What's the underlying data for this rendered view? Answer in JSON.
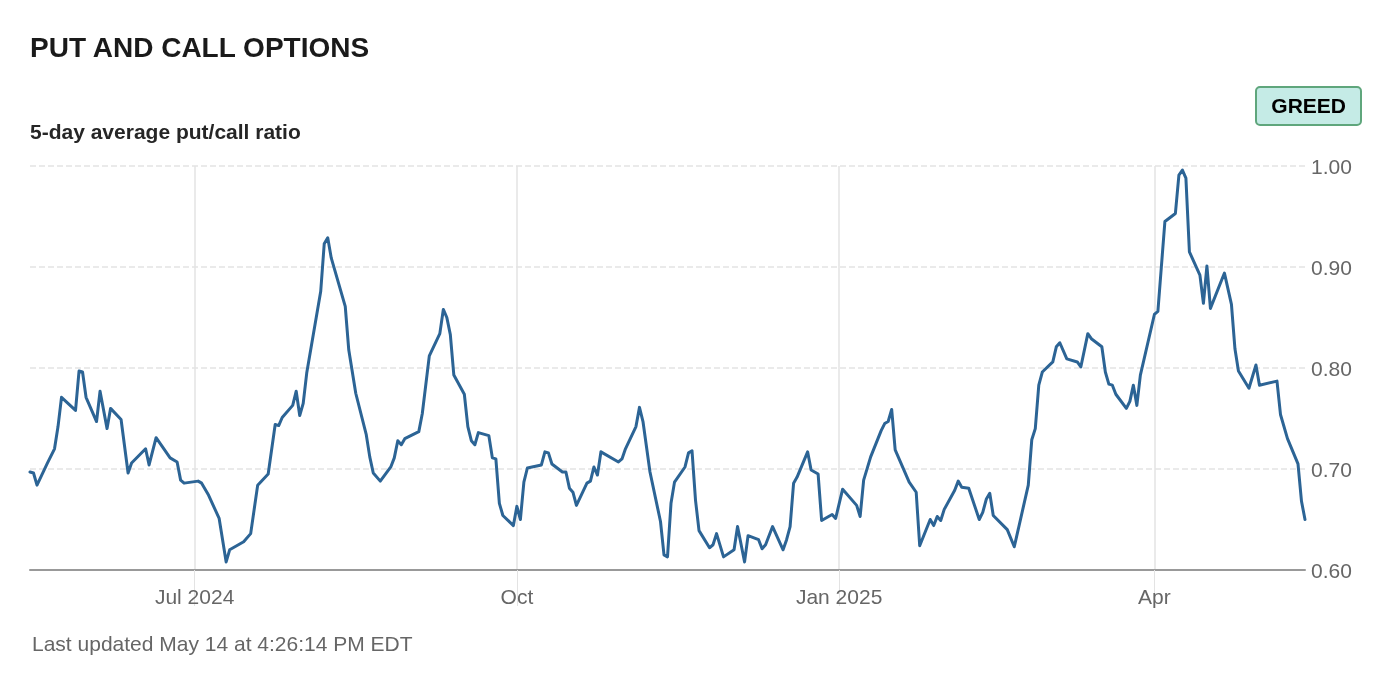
{
  "chart_data": {
    "type": "line",
    "title": "PUT AND CALL OPTIONS",
    "subtitle": "5-day average put/call ratio",
    "annotations": [
      "GREED",
      "Last updated May 14 at 4:26:14 PM EDT"
    ],
    "x": [
      "2024-05-15",
      "2024-05-16",
      "2024-05-17",
      "2024-05-20",
      "2024-05-22",
      "2024-05-23",
      "2024-05-24",
      "2024-05-28",
      "2024-05-29",
      "2024-05-30",
      "2024-05-31",
      "2024-06-03",
      "2024-06-04",
      "2024-06-06",
      "2024-06-07",
      "2024-06-10",
      "2024-06-12",
      "2024-06-13",
      "2024-06-17",
      "2024-06-18",
      "2024-06-20",
      "2024-06-24",
      "2024-06-26",
      "2024-06-27",
      "2024-06-28",
      "2024-07-02",
      "2024-07-03",
      "2024-07-05",
      "2024-07-08",
      "2024-07-10",
      "2024-07-11",
      "2024-07-15",
      "2024-07-17",
      "2024-07-19",
      "2024-07-22",
      "2024-07-24",
      "2024-07-25",
      "2024-07-26",
      "2024-07-29",
      "2024-07-30",
      "2024-07-31",
      "2024-08-01",
      "2024-08-02",
      "2024-08-06",
      "2024-08-07",
      "2024-08-08",
      "2024-08-09",
      "2024-08-13",
      "2024-08-14",
      "2024-08-16",
      "2024-08-19",
      "2024-08-20",
      "2024-08-21",
      "2024-08-23",
      "2024-08-26",
      "2024-08-27",
      "2024-08-28",
      "2024-08-29",
      "2024-08-30",
      "2024-09-03",
      "2024-09-04",
      "2024-09-06",
      "2024-09-09",
      "2024-09-10",
      "2024-09-11",
      "2024-09-12",
      "2024-09-13",
      "2024-09-16",
      "2024-09-17",
      "2024-09-18",
      "2024-09-19",
      "2024-09-20",
      "2024-09-23",
      "2024-09-24",
      "2024-09-25",
      "2024-09-26",
      "2024-09-27",
      "2024-09-30",
      "2024-10-01",
      "2024-10-02",
      "2024-10-03",
      "2024-10-04",
      "2024-10-08",
      "2024-10-09",
      "2024-10-10",
      "2024-10-11",
      "2024-10-14",
      "2024-10-15",
      "2024-10-16",
      "2024-10-17",
      "2024-10-18",
      "2024-10-21",
      "2024-10-22",
      "2024-10-23",
      "2024-10-24",
      "2024-10-25",
      "2024-10-30",
      "2024-10-31",
      "2024-11-01",
      "2024-11-04",
      "2024-11-05",
      "2024-11-06",
      "2024-11-08",
      "2024-11-11",
      "2024-11-12",
      "2024-11-13",
      "2024-11-14",
      "2024-11-15",
      "2024-11-18",
      "2024-11-19",
      "2024-11-20",
      "2024-11-21",
      "2024-11-22",
      "2024-11-25",
      "2024-11-26",
      "2024-11-27",
      "2024-11-29",
      "2024-12-02",
      "2024-12-03",
      "2024-12-05",
      "2024-12-06",
      "2024-12-09",
      "2024-12-10",
      "2024-12-11",
      "2024-12-13",
      "2024-12-16",
      "2024-12-17",
      "2024-12-18",
      "2024-12-19",
      "2024-12-20",
      "2024-12-23",
      "2024-12-24",
      "2024-12-26",
      "2024-12-27",
      "2024-12-30",
      "2024-12-31",
      "2025-01-02",
      "2025-01-06",
      "2025-01-07",
      "2025-01-08",
      "2025-01-10",
      "2025-01-13",
      "2025-01-14",
      "2025-01-15",
      "2025-01-16",
      "2025-01-17",
      "2025-01-21",
      "2025-01-23",
      "2025-01-24",
      "2025-01-27",
      "2025-01-28",
      "2025-01-29",
      "2025-01-30",
      "2025-01-31",
      "2025-02-03",
      "2025-02-04",
      "2025-02-05",
      "2025-02-07",
      "2025-02-10",
      "2025-02-11",
      "2025-02-12",
      "2025-02-13",
      "2025-02-14",
      "2025-02-18",
      "2025-02-20",
      "2025-02-24",
      "2025-02-25",
      "2025-02-26",
      "2025-02-27",
      "2025-02-28",
      "2025-03-03",
      "2025-03-04",
      "2025-03-05",
      "2025-03-07",
      "2025-03-10",
      "2025-03-11",
      "2025-03-13",
      "2025-03-14",
      "2025-03-17",
      "2025-03-18",
      "2025-03-19",
      "2025-03-20",
      "2025-03-21",
      "2025-03-24",
      "2025-03-25",
      "2025-03-26",
      "2025-03-27",
      "2025-03-28",
      "2025-04-01",
      "2025-04-02",
      "2025-04-04",
      "2025-04-07",
      "2025-04-08",
      "2025-04-09",
      "2025-04-10",
      "2025-04-11",
      "2025-04-14",
      "2025-04-15",
      "2025-04-16",
      "2025-04-17",
      "2025-04-21",
      "2025-04-23",
      "2025-04-24",
      "2025-04-25",
      "2025-04-28",
      "2025-04-30",
      "2025-05-01",
      "2025-05-06",
      "2025-05-07",
      "2025-05-09",
      "2025-05-12",
      "2025-05-13",
      "2025-05-14"
    ],
    "series": [
      {
        "color": "#2c6495",
        "values": [
          0.697,
          0.696,
          0.684,
          0.706,
          0.72,
          0.742,
          0.771,
          0.758,
          0.797,
          0.796,
          0.771,
          0.747,
          0.777,
          0.74,
          0.76,
          0.749,
          0.696,
          0.706,
          0.72,
          0.704,
          0.731,
          0.711,
          0.707,
          0.689,
          0.686,
          0.688,
          0.686,
          0.674,
          0.651,
          0.608,
          0.62,
          0.628,
          0.636,
          0.684,
          0.695,
          0.744,
          0.743,
          0.751,
          0.763,
          0.777,
          0.753,
          0.765,
          0.795,
          0.876,
          0.923,
          0.929,
          0.909,
          0.861,
          0.818,
          0.775,
          0.734,
          0.712,
          0.696,
          0.688,
          0.702,
          0.711,
          0.728,
          0.724,
          0.73,
          0.737,
          0.755,
          0.812,
          0.834,
          0.858,
          0.85,
          0.833,
          0.793,
          0.774,
          0.742,
          0.728,
          0.724,
          0.736,
          0.733,
          0.711,
          0.71,
          0.666,
          0.654,
          0.644,
          0.663,
          0.65,
          0.687,
          0.701,
          0.704,
          0.717,
          0.716,
          0.705,
          0.697,
          0.697,
          0.681,
          0.677,
          0.664,
          0.686,
          0.688,
          0.702,
          0.694,
          0.717,
          0.707,
          0.71,
          0.72,
          0.742,
          0.761,
          0.747,
          0.697,
          0.648,
          0.615,
          0.613,
          0.666,
          0.687,
          0.702,
          0.716,
          0.718,
          0.669,
          0.639,
          0.622,
          0.625,
          0.636,
          0.613,
          0.62,
          0.643,
          0.608,
          0.634,
          0.63,
          0.621,
          0.625,
          0.643,
          0.62,
          0.63,
          0.643,
          0.686,
          0.692,
          0.717,
          0.699,
          0.695,
          0.649,
          0.655,
          0.651,
          0.68,
          0.664,
          0.653,
          0.689,
          0.712,
          0.738,
          0.745,
          0.747,
          0.759,
          0.719,
          0.687,
          0.677,
          0.624,
          0.65,
          0.644,
          0.653,
          0.649,
          0.66,
          0.679,
          0.688,
          0.682,
          0.681,
          0.65,
          0.657,
          0.67,
          0.676,
          0.654,
          0.64,
          0.623,
          0.684,
          0.729,
          0.74,
          0.783,
          0.796,
          0.806,
          0.821,
          0.825,
          0.809,
          0.806,
          0.801,
          0.834,
          0.829,
          0.821,
          0.796,
          0.784,
          0.783,
          0.774,
          0.76,
          0.767,
          0.783,
          0.763,
          0.793,
          0.853,
          0.856,
          0.945,
          0.953,
          0.991,
          0.996,
          0.988,
          0.915,
          0.892,
          0.864,
          0.901,
          0.859,
          0.894,
          0.863,
          0.819,
          0.797,
          0.78,
          0.803,
          0.783,
          0.787,
          0.754,
          0.73,
          0.705,
          0.668,
          0.65
        ]
      }
    ],
    "xlim": [
      "2024-05-15",
      "2025-05-14"
    ],
    "xticks": [
      {
        "value": "2024-07-01",
        "label": "Jul 2024"
      },
      {
        "value": "2024-10-01",
        "label": "Oct"
      },
      {
        "value": "2025-01-01",
        "label": "Jan 2025"
      },
      {
        "value": "2025-04-01",
        "label": "Apr"
      }
    ],
    "ylim": [
      0.6,
      1.0
    ],
    "yticks": [
      {
        "value": 0.6,
        "label": "0.60"
      },
      {
        "value": 0.7,
        "label": "0.70"
      },
      {
        "value": 0.8,
        "label": "0.80"
      },
      {
        "value": 0.9,
        "label": "0.90"
      },
      {
        "value": 1.0,
        "label": "1.00"
      }
    ],
    "grid": true,
    "marker": "none",
    "line_style": "solid"
  }
}
